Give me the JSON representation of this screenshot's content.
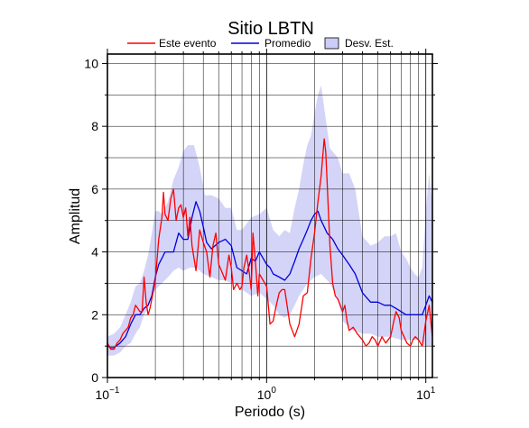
{
  "chart_data": {
    "type": "line",
    "title": "Sitio LBTN",
    "xlabel": "Periodo (s)",
    "ylabel": "Amplitud",
    "xscale": "log",
    "xlim": [
      0.1,
      11
    ],
    "ylim": [
      0,
      10.3
    ],
    "x_ticks": [
      {
        "value": 0.1,
        "base": "10",
        "exp": "−1"
      },
      {
        "value": 1,
        "base": "10",
        "exp": "0"
      },
      {
        "value": 10,
        "base": "10",
        "exp": "1"
      }
    ],
    "y_ticks": [
      0,
      2,
      4,
      6,
      8,
      10
    ],
    "grid": true,
    "legend": {
      "position": "top",
      "items": [
        {
          "label": "Este evento",
          "kind": "line",
          "color": "#ff0000"
        },
        {
          "label": "Promedio",
          "kind": "line",
          "color": "#0000dd"
        },
        {
          "label": "Desv. Est.",
          "kind": "area",
          "color": "#ccccf8"
        }
      ]
    },
    "band": {
      "name": "Desv. Est.",
      "color": "#d4d4f8",
      "upper": [
        [
          0.1,
          1.3
        ],
        [
          0.11,
          1.4
        ],
        [
          0.12,
          1.6
        ],
        [
          0.13,
          2.0
        ],
        [
          0.14,
          2.4
        ],
        [
          0.15,
          2.9
        ],
        [
          0.16,
          3.0
        ],
        [
          0.17,
          3.4
        ],
        [
          0.18,
          3.9
        ],
        [
          0.19,
          4.6
        ],
        [
          0.2,
          5.3
        ],
        [
          0.21,
          5.3
        ],
        [
          0.22,
          5.2
        ],
        [
          0.24,
          5.6
        ],
        [
          0.26,
          6.3
        ],
        [
          0.28,
          6.7
        ],
        [
          0.3,
          7.2
        ],
        [
          0.32,
          7.4
        ],
        [
          0.35,
          7.4
        ],
        [
          0.38,
          6.7
        ],
        [
          0.41,
          5.8
        ],
        [
          0.45,
          5.8
        ],
        [
          0.5,
          5.7
        ],
        [
          0.55,
          5.4
        ],
        [
          0.6,
          5.4
        ],
        [
          0.65,
          4.7
        ],
        [
          0.7,
          4.7
        ],
        [
          0.8,
          5.1
        ],
        [
          0.9,
          5.2
        ],
        [
          1.0,
          5.4
        ],
        [
          1.1,
          4.7
        ],
        [
          1.2,
          4.5
        ],
        [
          1.3,
          4.7
        ],
        [
          1.4,
          4.6
        ],
        [
          1.5,
          5.4
        ],
        [
          1.6,
          6.0
        ],
        [
          1.7,
          6.8
        ],
        [
          1.8,
          7.4
        ],
        [
          1.9,
          7.7
        ],
        [
          2.0,
          8.4
        ],
        [
          2.1,
          9.0
        ],
        [
          2.2,
          9.3
        ],
        [
          2.3,
          8.6
        ],
        [
          2.5,
          7.3
        ],
        [
          2.8,
          7.0
        ],
        [
          3.0,
          6.5
        ],
        [
          3.3,
          6.5
        ],
        [
          3.6,
          6.0
        ],
        [
          4.0,
          4.5
        ],
        [
          4.5,
          4.2
        ],
        [
          5.0,
          4.3
        ],
        [
          5.5,
          4.5
        ],
        [
          6.0,
          4.5
        ],
        [
          6.5,
          4.6
        ],
        [
          7.0,
          4.0
        ],
        [
          7.5,
          3.8
        ],
        [
          8.0,
          3.5
        ],
        [
          8.5,
          3.3
        ],
        [
          9.0,
          3.2
        ],
        [
          9.5,
          3.5
        ],
        [
          10.0,
          5.3
        ],
        [
          10.5,
          6.5
        ],
        [
          11.0,
          5.5
        ]
      ],
      "lower": [
        [
          0.1,
          0.7
        ],
        [
          0.11,
          0.7
        ],
        [
          0.12,
          0.8
        ],
        [
          0.13,
          1.0
        ],
        [
          0.14,
          1.1
        ],
        [
          0.15,
          1.4
        ],
        [
          0.16,
          1.6
        ],
        [
          0.17,
          2.0
        ],
        [
          0.18,
          2.2
        ],
        [
          0.19,
          2.6
        ],
        [
          0.2,
          2.8
        ],
        [
          0.22,
          3.0
        ],
        [
          0.24,
          3.2
        ],
        [
          0.26,
          3.4
        ],
        [
          0.28,
          3.5
        ],
        [
          0.3,
          3.4
        ],
        [
          0.33,
          3.5
        ],
        [
          0.36,
          3.5
        ],
        [
          0.4,
          3.3
        ],
        [
          0.45,
          3.2
        ],
        [
          0.5,
          3.1
        ],
        [
          0.55,
          3.1
        ],
        [
          0.6,
          3.0
        ],
        [
          0.65,
          3.0
        ],
        [
          0.7,
          2.8
        ],
        [
          0.8,
          2.6
        ],
        [
          0.9,
          2.7
        ],
        [
          1.0,
          2.5
        ],
        [
          1.1,
          2.3
        ],
        [
          1.2,
          2.0
        ],
        [
          1.3,
          1.9
        ],
        [
          1.4,
          2.0
        ],
        [
          1.5,
          2.3
        ],
        [
          1.6,
          2.6
        ],
        [
          1.8,
          3.0
        ],
        [
          2.0,
          3.2
        ],
        [
          2.2,
          3.3
        ],
        [
          2.5,
          3.0
        ],
        [
          2.8,
          2.5
        ],
        [
          3.0,
          1.8
        ],
        [
          3.5,
          1.5
        ],
        [
          4.0,
          1.4
        ],
        [
          4.5,
          1.4
        ],
        [
          5.0,
          1.3
        ],
        [
          6.0,
          1.3
        ],
        [
          7.0,
          1.2
        ],
        [
          8.0,
          1.2
        ],
        [
          9.0,
          1.2
        ],
        [
          10.0,
          1.0
        ],
        [
          11.0,
          1.0
        ]
      ]
    },
    "series": [
      {
        "name": "Promedio",
        "color": "#0000dd",
        "x": [
          0.1,
          0.105,
          0.11,
          0.12,
          0.13,
          0.14,
          0.15,
          0.16,
          0.17,
          0.18,
          0.19,
          0.2,
          0.21,
          0.22,
          0.23,
          0.24,
          0.26,
          0.28,
          0.3,
          0.32,
          0.34,
          0.36,
          0.38,
          0.4,
          0.42,
          0.45,
          0.5,
          0.55,
          0.6,
          0.65,
          0.7,
          0.75,
          0.8,
          0.85,
          0.9,
          0.95,
          1.0,
          1.05,
          1.1,
          1.2,
          1.3,
          1.4,
          1.5,
          1.6,
          1.7,
          1.8,
          1.9,
          2.0,
          2.1,
          2.2,
          2.3,
          2.4,
          2.6,
          2.8,
          3.0,
          3.3,
          3.6,
          4.0,
          4.5,
          5.0,
          5.5,
          6.0,
          6.5,
          7.0,
          7.5,
          8.0,
          8.5,
          9.0,
          9.5,
          10.0,
          10.5,
          11.0
        ],
        "y": [
          1.0,
          0.95,
          0.95,
          1.1,
          1.3,
          1.7,
          2.0,
          2.0,
          2.2,
          2.3,
          2.6,
          3.2,
          3.6,
          3.8,
          4.0,
          4.0,
          4.0,
          4.6,
          4.4,
          4.4,
          5.1,
          5.6,
          5.3,
          4.8,
          4.3,
          4.1,
          4.3,
          4.4,
          4.2,
          3.5,
          3.4,
          3.3,
          3.8,
          3.7,
          4.0,
          3.8,
          3.6,
          3.5,
          3.3,
          3.2,
          3.1,
          3.3,
          3.7,
          4.1,
          4.4,
          4.7,
          5.0,
          5.2,
          5.3,
          5.0,
          4.8,
          4.6,
          4.4,
          4.1,
          3.9,
          3.6,
          3.3,
          2.7,
          2.4,
          2.4,
          2.3,
          2.3,
          2.2,
          2.1,
          2.0,
          2.0,
          2.0,
          2.0,
          2.0,
          2.3,
          2.6,
          2.4
        ]
      },
      {
        "name": "Este evento",
        "color": "#ff0000",
        "x": [
          0.1,
          0.105,
          0.11,
          0.115,
          0.12,
          0.125,
          0.13,
          0.135,
          0.14,
          0.145,
          0.15,
          0.155,
          0.16,
          0.165,
          0.17,
          0.175,
          0.18,
          0.185,
          0.19,
          0.2,
          0.21,
          0.22,
          0.225,
          0.23,
          0.24,
          0.25,
          0.26,
          0.27,
          0.28,
          0.29,
          0.3,
          0.31,
          0.32,
          0.33,
          0.34,
          0.35,
          0.36,
          0.38,
          0.4,
          0.42,
          0.44,
          0.46,
          0.48,
          0.5,
          0.52,
          0.55,
          0.58,
          0.6,
          0.62,
          0.65,
          0.68,
          0.7,
          0.72,
          0.75,
          0.78,
          0.8,
          0.82,
          0.85,
          0.88,
          0.9,
          0.95,
          1.0,
          1.05,
          1.1,
          1.15,
          1.2,
          1.25,
          1.3,
          1.4,
          1.5,
          1.6,
          1.7,
          1.8,
          1.9,
          2.0,
          2.1,
          2.2,
          2.3,
          2.35,
          2.4,
          2.5,
          2.6,
          2.7,
          2.8,
          2.9,
          3.0,
          3.1,
          3.2,
          3.3,
          3.5,
          3.7,
          4.0,
          4.2,
          4.4,
          4.6,
          4.8,
          5.0,
          5.3,
          5.6,
          6.0,
          6.3,
          6.5,
          6.8,
          7.0,
          7.3,
          7.6,
          8.0,
          8.3,
          8.6,
          9.0,
          9.5,
          10.0,
          10.5,
          11.0
        ],
        "y": [
          1.1,
          0.9,
          0.9,
          1.1,
          1.2,
          1.4,
          1.5,
          1.6,
          1.9,
          2.0,
          2.3,
          2.2,
          2.1,
          2.1,
          3.2,
          2.4,
          2.0,
          2.2,
          2.5,
          3.1,
          4.4,
          5.1,
          5.9,
          5.2,
          5.0,
          5.7,
          6.0,
          5.0,
          5.4,
          5.5,
          5.1,
          5.4,
          4.5,
          5.1,
          4.2,
          3.8,
          3.4,
          4.7,
          4.3,
          4.0,
          3.2,
          4.2,
          4.6,
          3.6,
          3.4,
          3.1,
          3.9,
          3.5,
          2.8,
          3.0,
          2.8,
          2.9,
          3.5,
          3.9,
          3.3,
          2.8,
          4.6,
          3.7,
          2.6,
          3.3,
          3.1,
          2.9,
          1.7,
          1.8,
          2.3,
          2.7,
          2.8,
          2.8,
          1.7,
          1.3,
          1.7,
          2.6,
          2.7,
          3.8,
          4.6,
          5.6,
          6.4,
          7.6,
          7.2,
          6.2,
          4.2,
          3.0,
          2.6,
          2.5,
          2.3,
          2.1,
          2.3,
          1.8,
          1.5,
          1.6,
          1.4,
          1.2,
          1.0,
          1.1,
          1.3,
          1.2,
          1.0,
          1.3,
          1.1,
          1.3,
          1.8,
          2.1,
          1.9,
          1.5,
          1.3,
          1.1,
          1.0,
          1.2,
          1.3,
          1.2,
          1.0,
          1.8,
          2.3,
          1.3
        ]
      }
    ]
  }
}
